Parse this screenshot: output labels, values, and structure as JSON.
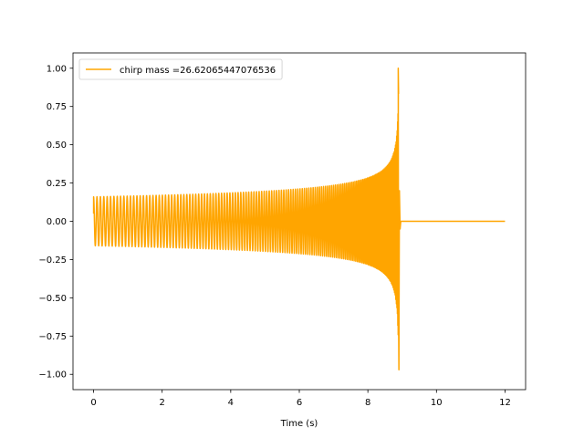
{
  "chart_data": {
    "type": "line",
    "xlabel": "Time (s)",
    "ylabel": "",
    "xlim": [
      -0.6,
      12.6
    ],
    "ylim": [
      -1.1,
      1.1
    ],
    "xticks": [
      0,
      2,
      4,
      6,
      8,
      10,
      12
    ],
    "xtick_labels": [
      "0",
      "2",
      "4",
      "6",
      "8",
      "10",
      "12"
    ],
    "yticks": [
      1.0,
      0.75,
      0.5,
      0.25,
      0.0,
      -0.25,
      -0.5,
      -0.75,
      -1.0
    ],
    "ytick_labels": [
      "1.00",
      "0.75",
      "0.50",
      "0.25",
      "0.00",
      "−0.25",
      "−0.50",
      "−0.75",
      "−1.00"
    ],
    "grid": false,
    "legend": {
      "position": "top-left"
    },
    "series": [
      {
        "name": "chirp mass =26.62065447076536",
        "color": "#ffa500",
        "signal": {
          "t_start": 0.0,
          "t_merger": 8.9,
          "t_end": 12.0,
          "amplitude_at_start": 0.16,
          "peak_amplitude": 1.0,
          "min_amplitude": -0.97,
          "initial_value": 0.05,
          "post_merger_value": 0.0,
          "cycles": 140
        }
      }
    ]
  }
}
